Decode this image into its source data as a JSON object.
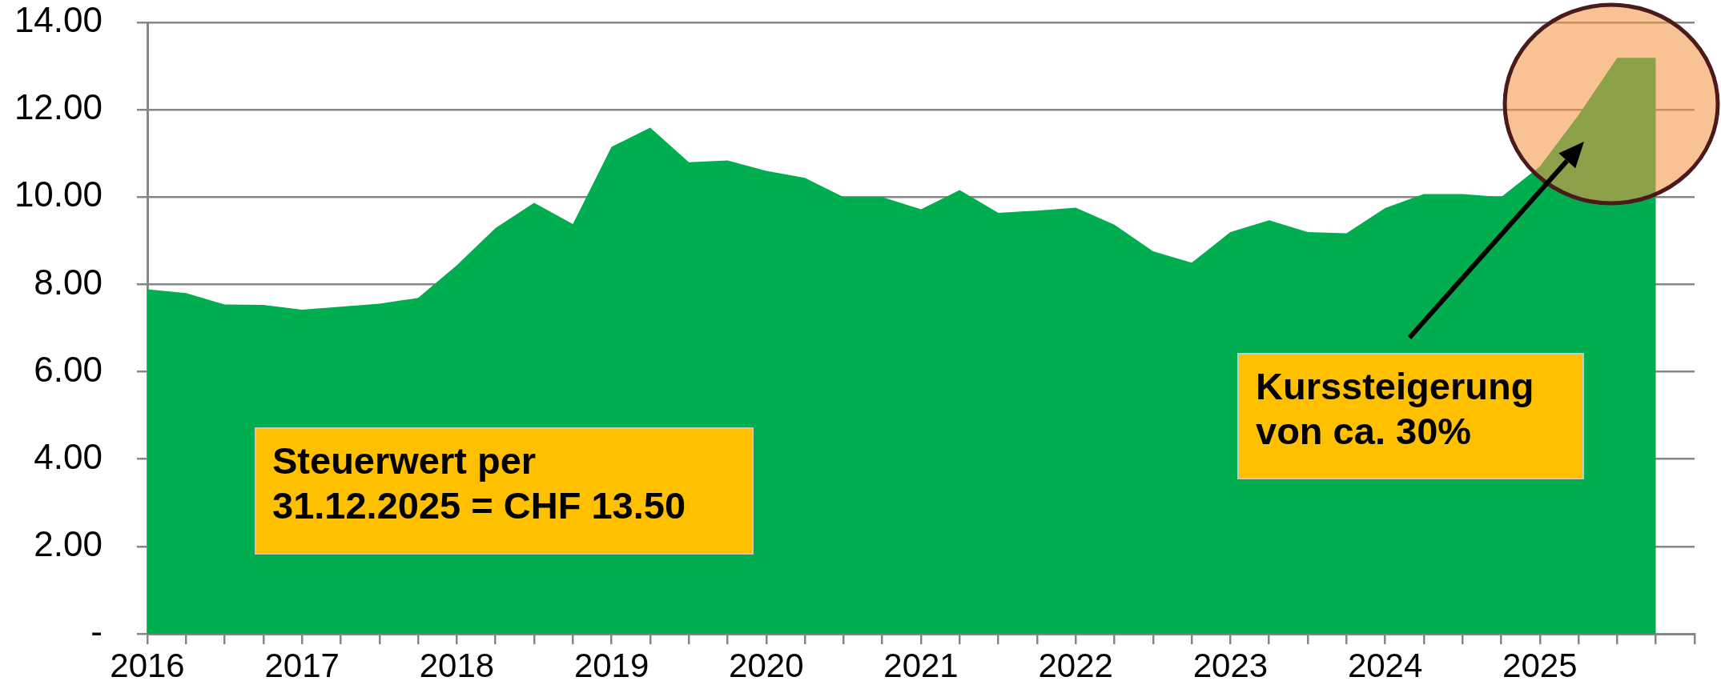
{
  "chart_data": {
    "type": "area",
    "color": "#00ae4f",
    "x": [
      2016,
      2016.25,
      2016.5,
      2016.75,
      2017,
      2017.25,
      2017.5,
      2017.75,
      2018,
      2018.25,
      2018.5,
      2018.75,
      2019,
      2019.25,
      2019.5,
      2019.75,
      2020,
      2020.25,
      2020.5,
      2020.75,
      2021,
      2021.25,
      2021.5,
      2021.75,
      2022,
      2022.25,
      2022.5,
      2022.75,
      2023,
      2023.25,
      2023.5,
      2023.75,
      2024,
      2024.25,
      2024.5,
      2024.75,
      2025,
      2025.25,
      2025.5,
      2025.75
    ],
    "values": [
      7.89,
      7.8,
      7.54,
      7.53,
      7.42,
      7.49,
      7.56,
      7.69,
      8.44,
      9.29,
      9.87,
      9.38,
      11.15,
      11.59,
      10.8,
      10.84,
      10.6,
      10.44,
      10.0,
      10.0,
      9.72,
      10.16,
      9.64,
      9.69,
      9.76,
      9.37,
      8.76,
      8.5,
      9.2,
      9.47,
      9.2,
      9.17,
      9.75,
      10.07,
      10.07,
      10.0,
      10.7,
      11.88,
      13.19,
      13.19
    ],
    "xlim": [
      2016,
      2026
    ],
    "xticks": [
      2016,
      {
        "value": 2016.25,
        "label": null
      },
      {
        "value": 2016.5,
        "label": null
      },
      {
        "value": 2016.75,
        "label": null
      },
      2017,
      {
        "value": 2017.25,
        "label": null
      },
      {
        "value": 2017.5,
        "label": null
      },
      {
        "value": 2017.75,
        "label": null
      },
      2018,
      {
        "value": 2018.25,
        "label": null
      },
      {
        "value": 2018.5,
        "label": null
      },
      {
        "value": 2018.75,
        "label": null
      },
      2019,
      {
        "value": 2019.25,
        "label": null
      },
      {
        "value": 2019.5,
        "label": null
      },
      {
        "value": 2019.75,
        "label": null
      },
      2020,
      {
        "value": 2020.25,
        "label": null
      },
      {
        "value": 2020.5,
        "label": null
      },
      {
        "value": 2020.75,
        "label": null
      },
      2021,
      {
        "value": 2021.25,
        "label": null
      },
      {
        "value": 2021.5,
        "label": null
      },
      {
        "value": 2021.75,
        "label": null
      },
      2022,
      {
        "value": 2022.25,
        "label": null
      },
      {
        "value": 2022.5,
        "label": null
      },
      {
        "value": 2022.75,
        "label": null
      },
      2023,
      {
        "value": 2023.25,
        "label": null
      },
      {
        "value": 2023.5,
        "label": null
      },
      {
        "value": 2023.75,
        "label": null
      },
      2024,
      {
        "value": 2024.25,
        "label": null
      },
      {
        "value": 2024.5,
        "label": null
      },
      {
        "value": 2024.75,
        "label": null
      },
      2025,
      {
        "value": 2025.25,
        "label": null
      },
      {
        "value": 2025.5,
        "label": null
      },
      {
        "value": 2025.75,
        "label": null
      },
      {
        "value": 2026,
        "label": null
      }
    ],
    "ylim": [
      0,
      14
    ],
    "yticks": [
      {
        "value": 0,
        "label": "-"
      },
      {
        "value": 2,
        "label": "2.00"
      },
      {
        "value": 4,
        "label": "4.00"
      },
      {
        "value": 6,
        "label": "6.00"
      },
      {
        "value": 8,
        "label": "8.00"
      },
      {
        "value": 10,
        "label": "10.00"
      },
      {
        "value": 12,
        "label": "12.00"
      },
      {
        "value": 14,
        "label": "14.00"
      }
    ],
    "grid": "y",
    "annotations": [
      "Steuerwert per 31.12.2025 = CHF 13.50",
      "Kurssteigerung von ca. 30%"
    ]
  }
}
